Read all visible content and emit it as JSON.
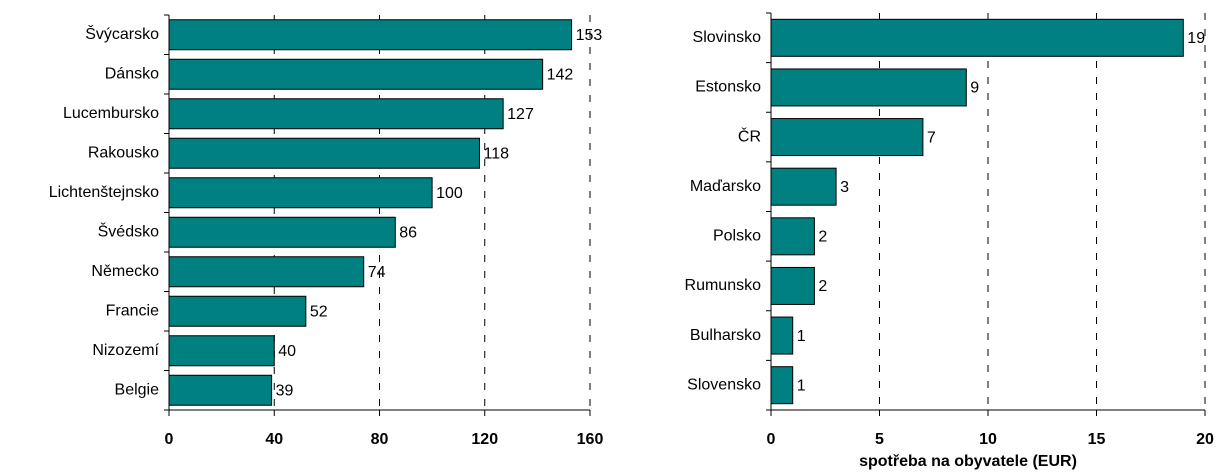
{
  "chart_data": [
    {
      "type": "bar",
      "orientation": "horizontal",
      "categories": [
        "Švýcarsko",
        "Dánsko",
        "Lucembursko",
        "Rakousko",
        "Lichtenštejnsko",
        "Švédsko",
        "Německo",
        "Francie",
        "Nizozemí",
        "Belgie"
      ],
      "values": [
        153,
        142,
        127,
        118,
        100,
        86,
        74,
        52,
        40,
        39
      ],
      "color": "#008080",
      "xlim": [
        0,
        160
      ],
      "xticks": [
        0,
        40,
        80,
        120,
        160
      ],
      "grid": true
    },
    {
      "type": "bar",
      "orientation": "horizontal",
      "categories": [
        "Slovinsko",
        "Estonsko",
        "ČR",
        "Maďarsko",
        "Polsko",
        "Rumunsko",
        "Bulharsko",
        "Slovensko"
      ],
      "values": [
        19,
        9,
        7,
        3,
        2,
        2,
        1,
        1
      ],
      "color": "#008080",
      "xlim": [
        0,
        20
      ],
      "xticks": [
        0,
        5,
        10,
        15,
        20
      ],
      "grid": true,
      "x_label": "spotřeba na obyvatele (EUR)"
    }
  ]
}
